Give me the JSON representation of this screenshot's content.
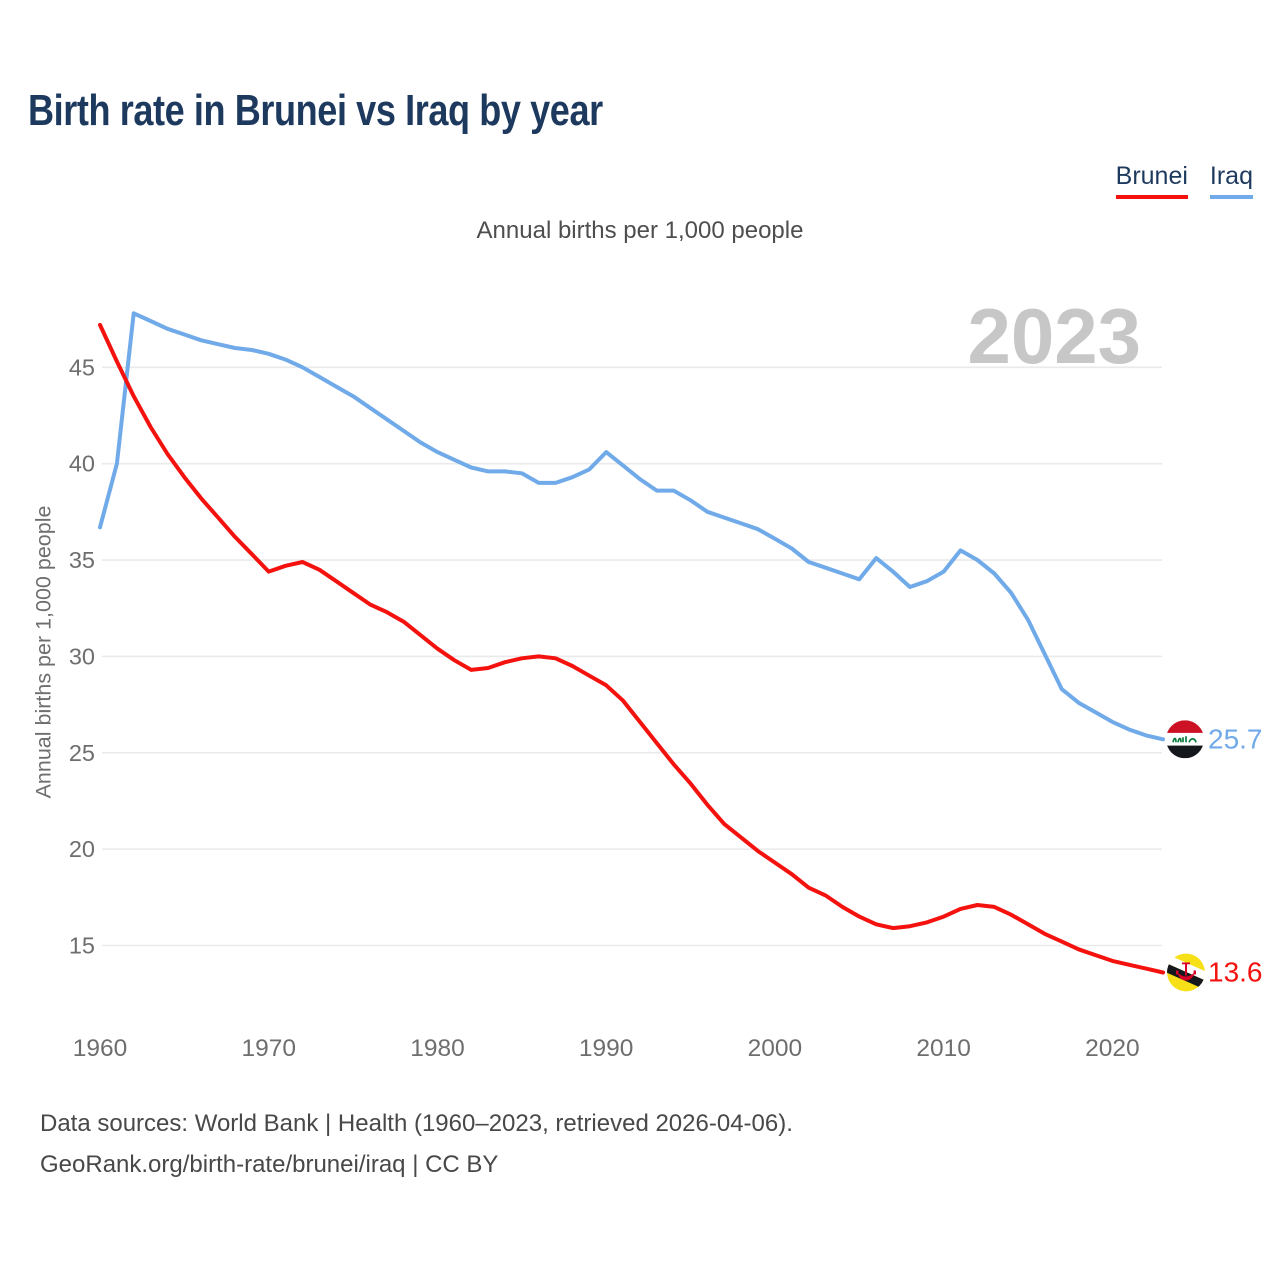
{
  "header": {
    "title": "Birth rate in Brunei vs Iraq by year"
  },
  "subtitle": "Annual births per 1,000 people",
  "footer": {
    "line1": "Data sources: World Bank | Health (1960–2023, retrieved 2026-04-06).",
    "line2": "GeoRank.org/birth-rate/brunei/iraq | CC BY"
  },
  "chart_data": {
    "type": "line",
    "title": "Annual births per 1,000 people",
    "ylabel": "Annual births per 1,000 people",
    "xlabel": "",
    "year_watermark": "2023",
    "grid": true,
    "legend_position": "top-right",
    "ylim": [
      12.5,
      48.5
    ],
    "y_ticks": [
      15,
      20,
      25,
      30,
      35,
      40,
      45
    ],
    "x_ticks": [
      1960,
      1970,
      1980,
      1990,
      2000,
      2010,
      2020
    ],
    "x": [
      1960,
      1961,
      1962,
      1963,
      1964,
      1965,
      1966,
      1967,
      1968,
      1969,
      1970,
      1971,
      1972,
      1973,
      1974,
      1975,
      1976,
      1977,
      1978,
      1979,
      1980,
      1981,
      1982,
      1983,
      1984,
      1985,
      1986,
      1987,
      1988,
      1989,
      1990,
      1991,
      1992,
      1993,
      1994,
      1995,
      1996,
      1997,
      1998,
      1999,
      2000,
      2001,
      2002,
      2003,
      2004,
      2005,
      2006,
      2007,
      2008,
      2009,
      2010,
      2011,
      2012,
      2013,
      2014,
      2015,
      2016,
      2017,
      2018,
      2019,
      2020,
      2021,
      2022,
      2023
    ],
    "series": [
      {
        "name": "Brunei",
        "color": "#f3120e",
        "flag": "brunei",
        "end_label": "13.6",
        "values": [
          47.2,
          45.3,
          43.5,
          41.9,
          40.5,
          39.3,
          38.2,
          37.2,
          36.2,
          35.3,
          34.4,
          34.7,
          34.9,
          34.5,
          33.9,
          33.3,
          32.7,
          32.3,
          31.8,
          31.1,
          30.4,
          29.8,
          29.3,
          29.4,
          29.7,
          29.9,
          30.0,
          29.9,
          29.5,
          29.0,
          28.5,
          27.7,
          26.6,
          25.5,
          24.4,
          23.4,
          22.3,
          21.3,
          20.6,
          19.9,
          19.3,
          18.7,
          18.0,
          17.6,
          17.0,
          16.5,
          16.1,
          15.9,
          16.0,
          16.2,
          16.5,
          16.9,
          17.1,
          17.0,
          16.6,
          16.1,
          15.6,
          15.2,
          14.8,
          14.5,
          14.2,
          14.0,
          13.8,
          13.6
        ]
      },
      {
        "name": "Iraq",
        "color": "#70aae9",
        "flag": "iraq",
        "end_label": "25.7",
        "values": [
          36.7,
          40.0,
          47.8,
          47.4,
          47.0,
          46.7,
          46.4,
          46.2,
          46.0,
          45.9,
          45.7,
          45.4,
          45.0,
          44.5,
          44.0,
          43.5,
          42.9,
          42.3,
          41.7,
          41.1,
          40.6,
          40.2,
          39.8,
          39.6,
          39.6,
          39.5,
          39.0,
          39.0,
          39.3,
          39.7,
          40.6,
          39.9,
          39.2,
          38.6,
          38.6,
          38.1,
          37.5,
          37.2,
          36.9,
          36.6,
          36.1,
          35.6,
          34.9,
          34.6,
          34.3,
          34.0,
          35.1,
          34.4,
          33.6,
          33.9,
          34.4,
          35.5,
          35.0,
          34.3,
          33.3,
          31.9,
          30.1,
          28.3,
          27.6,
          27.1,
          26.6,
          26.2,
          25.9,
          25.7
        ]
      }
    ],
    "colors": {
      "grid": "#eaeaea",
      "tick_text": "#6e6e6e",
      "watermark": "#c7c7c7",
      "title_navy": "#1d3a5e"
    }
  }
}
